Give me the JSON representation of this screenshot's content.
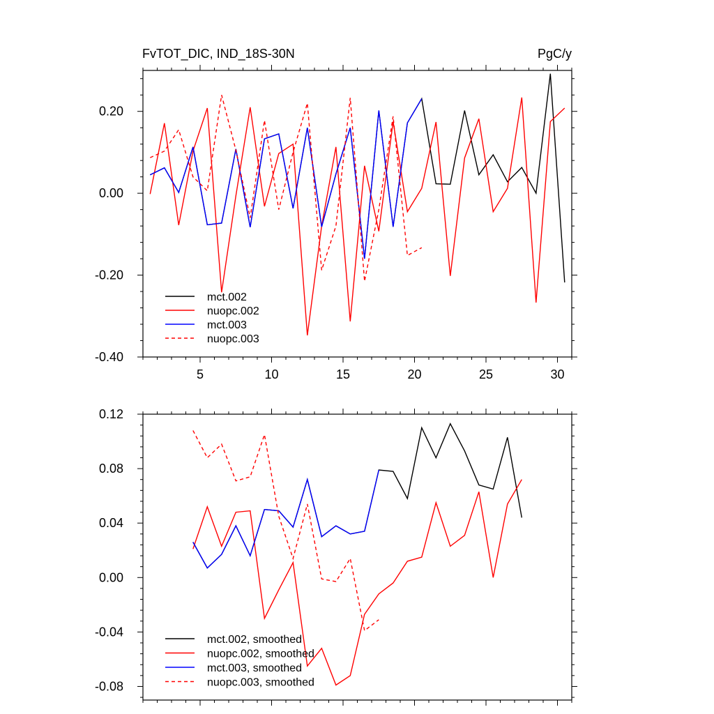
{
  "chart_data": [
    {
      "type": "line",
      "title": "FvTOT_DIC, IND_18S-30N",
      "units": "PgC/y",
      "xlim": [
        1,
        31
      ],
      "ylim": [
        -0.4,
        0.3
      ],
      "xticks": [
        5,
        10,
        15,
        20,
        25,
        30
      ],
      "xtick_labels": [
        "5",
        "10",
        "15",
        "20",
        "25",
        "30"
      ],
      "yticks": [
        0.2,
        0.0,
        -0.2,
        -0.4
      ],
      "ytick_labels": [
        "0.20",
        "0.00",
        "-0.20",
        "-0.40"
      ],
      "legend": {
        "position": "bottom-left"
      },
      "series": [
        {
          "name": "mct.002",
          "color": "#000000",
          "dash": "solid",
          "x": [
            1.5,
            2.5,
            3.5,
            4.5,
            5.5,
            6.5,
            7.5,
            8.5,
            9.5,
            10.5,
            11.5,
            12.5,
            13.5,
            14.5,
            15.5,
            16.5,
            17.5,
            18.5,
            19.5,
            20.5,
            21.5,
            22.5,
            23.5,
            24.5,
            25.5,
            26.5,
            27.5,
            28.5,
            29.5,
            30.5
          ],
          "values": [
            0.045,
            0.062,
            0.002,
            0.113,
            -0.077,
            -0.073,
            0.108,
            -0.083,
            0.133,
            0.145,
            -0.037,
            0.16,
            -0.082,
            0.047,
            0.16,
            -0.16,
            0.202,
            -0.082,
            0.172,
            0.231,
            0.023,
            0.022,
            0.202,
            0.045,
            0.094,
            0.028,
            0.063,
            0.0,
            0.292,
            -0.218
          ]
        },
        {
          "name": "nuopc.002",
          "color": "#ff0000",
          "dash": "solid",
          "x": [
            1.5,
            2.5,
            3.5,
            4.5,
            5.5,
            6.5,
            7.5,
            8.5,
            9.5,
            10.5,
            11.5,
            12.5,
            13.5,
            14.5,
            15.5,
            16.5,
            17.5,
            18.5,
            19.5,
            20.5,
            21.5,
            22.5,
            23.5,
            24.5,
            25.5,
            26.5,
            27.5,
            28.5,
            29.5,
            30.5
          ],
          "values": [
            -0.002,
            0.171,
            -0.078,
            0.103,
            0.208,
            -0.242,
            -0.006,
            0.21,
            -0.032,
            0.097,
            0.12,
            -0.347,
            -0.08,
            0.113,
            -0.313,
            0.067,
            -0.093,
            0.175,
            -0.045,
            0.012,
            0.174,
            -0.202,
            0.086,
            0.182,
            -0.045,
            0.012,
            0.234,
            -0.267,
            0.175,
            0.208
          ]
        },
        {
          "name": "mct.003",
          "color": "#0000ff",
          "dash": "solid",
          "x": [
            1.5,
            2.5,
            3.5,
            4.5,
            5.5,
            6.5,
            7.5,
            8.5,
            9.5,
            10.5,
            11.5,
            12.5,
            13.5,
            14.5,
            15.5,
            16.5,
            17.5,
            18.5,
            19.5,
            20.5
          ],
          "values": [
            0.045,
            0.062,
            0.002,
            0.113,
            -0.077,
            -0.073,
            0.108,
            -0.083,
            0.133,
            0.145,
            -0.037,
            0.16,
            -0.082,
            0.047,
            0.16,
            -0.16,
            0.202,
            -0.082,
            0.172,
            0.231
          ]
        },
        {
          "name": "nuopc.003",
          "color": "#ff0000",
          "dash": "dashed",
          "x": [
            1.5,
            2.5,
            3.5,
            4.5,
            5.5,
            6.5,
            7.5,
            8.5,
            9.5,
            10.5,
            11.5,
            12.5,
            13.5,
            14.5,
            15.5,
            16.5,
            17.5,
            18.5,
            19.5,
            20.5
          ],
          "values": [
            0.087,
            0.103,
            0.155,
            0.04,
            0.006,
            0.24,
            0.105,
            -0.06,
            0.178,
            -0.04,
            0.1,
            0.22,
            -0.188,
            -0.08,
            0.233,
            -0.215,
            -0.04,
            0.188,
            -0.152,
            -0.133
          ]
        }
      ]
    },
    {
      "type": "line",
      "title": "",
      "xlim": [
        1,
        31
      ],
      "ylim": [
        -0.09,
        0.12
      ],
      "xticks": [
        5,
        10,
        15,
        20,
        25,
        30
      ],
      "xtick_labels": [],
      "yticks": [
        0.12,
        0.08,
        0.04,
        0.0,
        -0.04,
        -0.08
      ],
      "ytick_labels": [
        "0.12",
        "0.08",
        "0.04",
        "0.00",
        "-0.04",
        "-0.08"
      ],
      "legend": {
        "position": "bottom-left"
      },
      "series": [
        {
          "name": "mct.002, smoothed",
          "color": "#000000",
          "dash": "solid",
          "x": [
            4.5,
            5.5,
            6.5,
            7.5,
            8.5,
            9.5,
            10.5,
            11.5,
            12.5,
            13.5,
            14.5,
            15.5,
            16.5,
            17.5,
            18.5,
            19.5,
            20.5,
            21.5,
            22.5,
            23.5,
            24.5,
            25.5,
            26.5,
            27.5
          ],
          "values": [
            0.026,
            0.007,
            0.017,
            0.038,
            0.016,
            0.05,
            0.049,
            0.037,
            0.072,
            0.03,
            0.038,
            0.032,
            0.034,
            0.079,
            0.078,
            0.058,
            0.11,
            0.088,
            0.113,
            0.093,
            0.068,
            0.065,
            0.103,
            0.044
          ]
        },
        {
          "name": "nuopc.002, smoothed",
          "color": "#ff0000",
          "dash": "solid",
          "x": [
            4.5,
            5.5,
            6.5,
            7.5,
            8.5,
            9.5,
            10.5,
            11.5,
            12.5,
            13.5,
            14.5,
            15.5,
            16.5,
            17.5,
            18.5,
            19.5,
            20.5,
            21.5,
            22.5,
            23.5,
            24.5,
            25.5,
            26.5,
            27.5
          ],
          "values": [
            0.021,
            0.052,
            0.023,
            0.048,
            0.049,
            -0.03,
            -0.009,
            0.011,
            -0.065,
            -0.052,
            -0.079,
            -0.072,
            -0.027,
            -0.012,
            -0.004,
            0.012,
            0.015,
            0.055,
            0.023,
            0.031,
            0.063,
            0.0,
            0.054,
            0.072
          ]
        },
        {
          "name": "mct.003, smoothed",
          "color": "#0000ff",
          "dash": "solid",
          "x": [
            4.5,
            5.5,
            6.5,
            7.5,
            8.5,
            9.5,
            10.5,
            11.5,
            12.5,
            13.5,
            14.5,
            15.5,
            16.5,
            17.5
          ],
          "values": [
            0.026,
            0.007,
            0.017,
            0.038,
            0.016,
            0.05,
            0.049,
            0.037,
            0.072,
            0.03,
            0.038,
            0.032,
            0.034,
            0.079
          ]
        },
        {
          "name": "nuopc.003, smoothed",
          "color": "#ff0000",
          "dash": "dashed",
          "x": [
            4.5,
            5.5,
            6.5,
            7.5,
            8.5,
            9.5,
            10.5,
            11.5,
            12.5,
            13.5,
            14.5,
            15.5,
            16.5,
            17.5
          ],
          "values": [
            0.108,
            0.088,
            0.098,
            0.071,
            0.074,
            0.105,
            0.045,
            0.014,
            0.054,
            -0.001,
            -0.003,
            0.014,
            -0.039,
            -0.031
          ]
        }
      ]
    }
  ]
}
